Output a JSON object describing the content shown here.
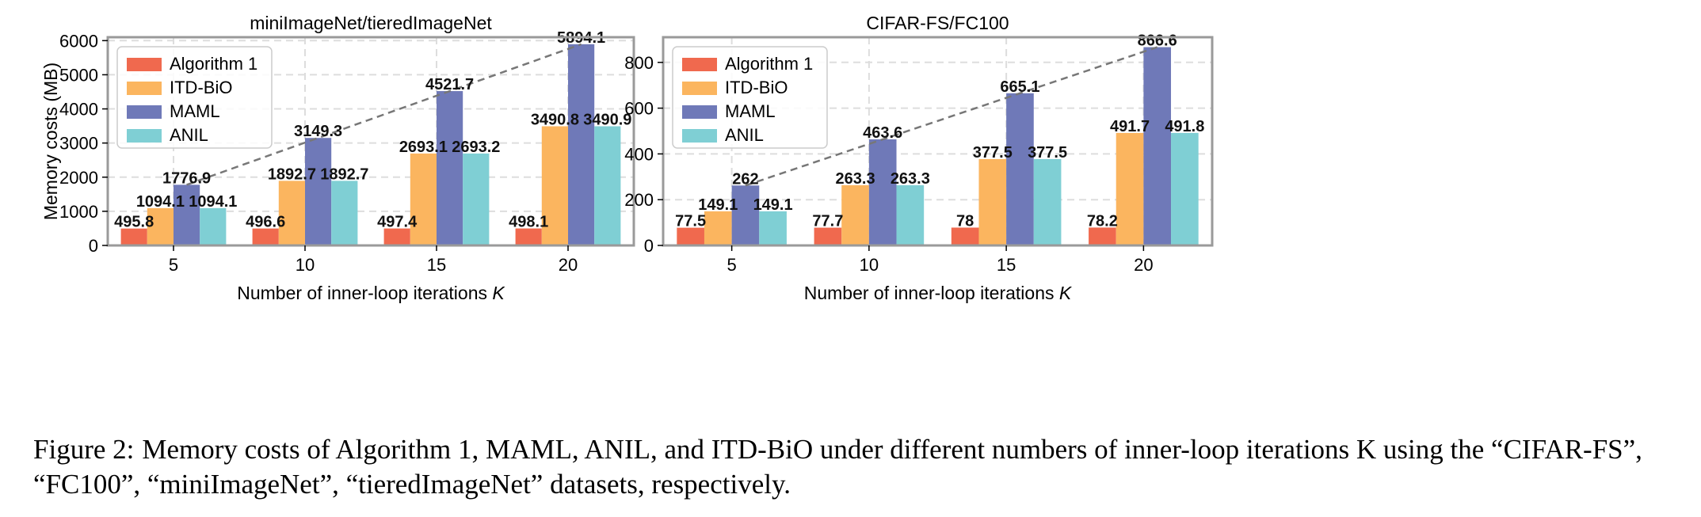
{
  "caption": {
    "label": "Figure 2:",
    "text": "Memory costs of Algorithm 1, MAML, ANIL, and ITD-BiO under different numbers of inner-loop iterations K using the “CIFAR-FS”, “FC100”, “miniImageNet”, “tieredImageNet” datasets, respectively."
  },
  "chart_data": [
    {
      "type": "bar",
      "title": "miniImageNet/tieredImageNet",
      "xlabel": "Number of inner-loop iterations K",
      "ylabel": "Memory costs (MB)",
      "categories": [
        "5",
        "10",
        "15",
        "20"
      ],
      "ylim": [
        0,
        6100
      ],
      "yticks": [
        0,
        1000,
        2000,
        3000,
        4000,
        5000,
        6000
      ],
      "grid": true,
      "legend_position": "top-left",
      "series": [
        {
          "name": "Algorithm 1",
          "color": "#f0694e",
          "values": [
            495.8,
            496.6,
            497.4,
            498.1
          ],
          "labels": [
            "495.8",
            "496.6",
            "497.4",
            "498.1"
          ]
        },
        {
          "name": "ITD-BiO",
          "color": "#fbb55f",
          "values": [
            1094.1,
            1892.7,
            2693.1,
            3490.8
          ],
          "labels": [
            "1094.1",
            "1892.7",
            "2693.1",
            "3490.8"
          ]
        },
        {
          "name": "MAML",
          "color": "#6f79b8",
          "values": [
            1776.9,
            3149.3,
            4521.7,
            5894.1
          ],
          "labels": [
            "1776.9",
            "3149.3",
            "4521.7",
            "5894.1"
          ]
        },
        {
          "name": "ANIL",
          "color": "#7fcfd4",
          "values": [
            1094.1,
            1892.7,
            2693.2,
            3490.9
          ],
          "labels": [
            "1094.1",
            "1892.7",
            "2693.2",
            "3490.9"
          ]
        }
      ],
      "trend_line": {
        "series": "MAML",
        "style": "dashed",
        "color": "#777777"
      }
    },
    {
      "type": "bar",
      "title": "CIFAR-FS/FC100",
      "xlabel": "Number of inner-loop iterations K",
      "ylabel": "",
      "categories": [
        "5",
        "10",
        "15",
        "20"
      ],
      "ylim": [
        0,
        910
      ],
      "yticks": [
        0,
        200,
        400,
        600,
        800
      ],
      "grid": true,
      "legend_position": "top-left",
      "series": [
        {
          "name": "Algorithm 1",
          "color": "#f0694e",
          "values": [
            77.5,
            77.7,
            78,
            78.2
          ],
          "labels": [
            "77.5",
            "77.7",
            "78",
            "78.2"
          ]
        },
        {
          "name": "ITD-BiO",
          "color": "#fbb55f",
          "values": [
            149.1,
            263.3,
            377.5,
            491.7
          ],
          "labels": [
            "149.1",
            "263.3",
            "377.5",
            "491.7"
          ]
        },
        {
          "name": "MAML",
          "color": "#6f79b8",
          "values": [
            262,
            463.6,
            665.1,
            866.6
          ],
          "labels": [
            "262",
            "463.6",
            "665.1",
            "866.6"
          ]
        },
        {
          "name": "ANIL",
          "color": "#7fcfd4",
          "values": [
            149.1,
            263.3,
            377.5,
            491.8
          ],
          "labels": [
            "149.1",
            "263.3",
            "377.5",
            "491.8"
          ]
        }
      ],
      "trend_line": {
        "series": "MAML",
        "style": "dashed",
        "color": "#777777"
      }
    }
  ]
}
